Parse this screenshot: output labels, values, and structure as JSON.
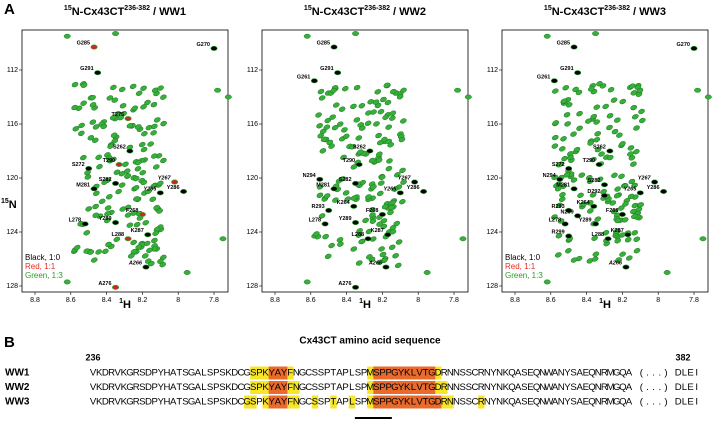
{
  "figure": {
    "panel_a_label": "A",
    "panel_b_label": "B",
    "y_axis_label": {
      "sup": "15",
      "main": "N"
    },
    "x_axis_label": {
      "sup": "1",
      "main": "H"
    },
    "x_ticks": [
      8.8,
      8.6,
      8.4,
      8.2,
      8.0,
      7.8
    ],
    "y_ticks": [
      112,
      116,
      120,
      124,
      128
    ],
    "legend": [
      {
        "text": "Black, 1:0",
        "color": "#000000"
      },
      {
        "text": "Red, 1:1",
        "color": "#e8281e"
      },
      {
        "text": "Green, 1:3",
        "color": "#2aa02a"
      }
    ],
    "spectra": [
      {
        "title": {
          "sup1": "15",
          "main": "N-Cx43CT",
          "sup2": "236-382",
          "post": " / WW1"
        },
        "legend": true,
        "peaks": [
          {
            "label": "G285",
            "h": 8.47,
            "n": 110.3
          },
          {
            "label": "G270",
            "h": 7.8,
            "n": 110.4
          },
          {
            "label": "G291",
            "h": 8.45,
            "n": 112.2
          },
          {
            "label": "T275",
            "h": 8.28,
            "n": 115.6
          },
          {
            "label": "S262",
            "h": 8.27,
            "n": 118.0
          },
          {
            "label": "S272",
            "h": 8.5,
            "n": 119.3
          },
          {
            "label": "T290",
            "h": 8.33,
            "n": 119.0
          },
          {
            "label": "S282",
            "h": 8.35,
            "n": 120.4
          },
          {
            "label": "M281",
            "h": 8.47,
            "n": 120.8
          },
          {
            "label": "Y267",
            "h": 8.02,
            "n": 120.3,
            "italic": true
          },
          {
            "label": "Y265",
            "h": 8.1,
            "n": 121.1,
            "italic": true
          },
          {
            "label": "Y286",
            "h": 7.97,
            "n": 121.0
          },
          {
            "label": "F268",
            "h": 8.2,
            "n": 122.7
          },
          {
            "label": "L278",
            "h": 8.52,
            "n": 123.4
          },
          {
            "label": "Y289",
            "h": 8.35,
            "n": 123.3
          },
          {
            "label": "L288",
            "h": 8.28,
            "n": 124.5
          },
          {
            "label": "K287",
            "h": 8.17,
            "n": 124.2
          },
          {
            "label": "A266",
            "h": 8.18,
            "n": 126.6,
            "italic": true
          },
          {
            "label": "A276",
            "h": 8.35,
            "n": 128.1
          }
        ]
      },
      {
        "title": {
          "sup1": "15",
          "main": "N-Cx43CT",
          "sup2": "236-382",
          "post": " / WW2"
        },
        "legend": false,
        "peaks": [
          {
            "label": "G285",
            "h": 8.47,
            "n": 110.3
          },
          {
            "label": "G291",
            "h": 8.45,
            "n": 112.2
          },
          {
            "label": "G261",
            "h": 8.58,
            "n": 112.8
          },
          {
            "label": "S262",
            "h": 8.27,
            "n": 118.0
          },
          {
            "label": "T290",
            "h": 8.33,
            "n": 119.0
          },
          {
            "label": "N294",
            "h": 8.55,
            "n": 120.1
          },
          {
            "label": "Y267",
            "h": 8.02,
            "n": 120.3,
            "italic": true
          },
          {
            "label": "S282",
            "h": 8.35,
            "n": 120.4
          },
          {
            "label": "M281",
            "h": 8.47,
            "n": 120.8
          },
          {
            "label": "Y265",
            "h": 8.1,
            "n": 121.1,
            "italic": true
          },
          {
            "label": "Y286",
            "h": 7.97,
            "n": 121.0
          },
          {
            "label": "R293",
            "h": 8.5,
            "n": 122.4
          },
          {
            "label": "K264",
            "h": 8.36,
            "n": 122.1
          },
          {
            "label": "Y289",
            "h": 8.35,
            "n": 123.3
          },
          {
            "label": "L278",
            "h": 8.52,
            "n": 123.4
          },
          {
            "label": "F268",
            "h": 8.2,
            "n": 122.7
          },
          {
            "label": "L288",
            "h": 8.28,
            "n": 124.5
          },
          {
            "label": "K287",
            "h": 8.17,
            "n": 124.2
          },
          {
            "label": "A266",
            "h": 8.18,
            "n": 126.6,
            "italic": true
          },
          {
            "label": "A276",
            "h": 8.35,
            "n": 128.1
          }
        ]
      },
      {
        "title": {
          "sup1": "15",
          "main": "N-Cx43CT",
          "sup2": "236-382",
          "post": " / WW3"
        },
        "legend": true,
        "peaks": [
          {
            "label": "G285",
            "h": 8.47,
            "n": 110.3
          },
          {
            "label": "G270",
            "h": 7.8,
            "n": 110.4
          },
          {
            "label": "G261",
            "h": 8.58,
            "n": 112.8
          },
          {
            "label": "G291",
            "h": 8.45,
            "n": 112.2
          },
          {
            "label": "S262",
            "h": 8.27,
            "n": 118.0
          },
          {
            "label": "S272",
            "h": 8.5,
            "n": 119.3
          },
          {
            "label": "T290",
            "h": 8.33,
            "n": 119.0
          },
          {
            "label": "N294",
            "h": 8.55,
            "n": 120.1
          },
          {
            "label": "S282",
            "h": 8.3,
            "n": 120.5
          },
          {
            "label": "Y267",
            "h": 8.02,
            "n": 120.3,
            "italic": true
          },
          {
            "label": "M281",
            "h": 8.47,
            "n": 120.8
          },
          {
            "label": "D292",
            "h": 8.3,
            "n": 121.3
          },
          {
            "label": "Y286",
            "h": 7.97,
            "n": 121.0
          },
          {
            "label": "Y265",
            "h": 8.1,
            "n": 121.1,
            "italic": true
          },
          {
            "label": "R293",
            "h": 8.5,
            "n": 122.4
          },
          {
            "label": "K264",
            "h": 8.36,
            "n": 122.1
          },
          {
            "label": "N269",
            "h": 8.45,
            "n": 122.8
          },
          {
            "label": "L278",
            "h": 8.52,
            "n": 123.4
          },
          {
            "label": "F268",
            "h": 8.2,
            "n": 122.7
          },
          {
            "label": "Y289",
            "h": 8.35,
            "n": 123.4
          },
          {
            "label": "R299",
            "h": 8.5,
            "n": 124.3
          },
          {
            "label": "L288",
            "h": 8.28,
            "n": 124.5
          },
          {
            "label": "K287",
            "h": 8.17,
            "n": 124.2
          },
          {
            "label": "A266",
            "h": 8.18,
            "n": 126.6,
            "italic": true
          }
        ]
      }
    ],
    "sequence_panel": {
      "title": "Cx43CT amino acid sequence",
      "start_number": "236",
      "end_number": "382",
      "colors": {
        "yellow": "#f7e628",
        "orange": "#ea6a2c"
      },
      "rows": [
        {
          "label": "WW1",
          "sequence": "VKDRVKGRSDPYHATSGALSPSKDCGSPKYAYFNGCSSPTAPLSPMSPPGYKLVTGDRNNSSCRNYNKQASEQNWANYSAEQNRMGQA (...) DLEI",
          "yellow": [
            262,
            263,
            264,
            268,
            281,
            292
          ],
          "orange": [
            265,
            266,
            267,
            282,
            283,
            284,
            285,
            286,
            287,
            288,
            289,
            290,
            291
          ]
        },
        {
          "label": "WW2",
          "sequence": "VKDRVKGRSDPYHATSGALSPSKDCGSPKYAYFNGCSSPTAPLSPMSPPGYKLVTGDRNNSSCRNYNKQASEQNWANYSAEQNRMGQA (...) DLEI",
          "yellow": [
            262,
            263,
            264,
            268,
            269,
            281,
            292,
            293
          ],
          "orange": [
            265,
            266,
            267,
            282,
            283,
            284,
            285,
            286,
            287,
            288,
            289,
            290,
            291
          ]
        },
        {
          "label": "WW3",
          "sequence": "VKDRVKGRSDPYHATSGALSPSKDCGSPKYAYFNGCSSPTAPLSPMSPPGYKLVTGDRNNSSCRNYNKQASEQNWANYSAEQNRMGQA (...) DLEI",
          "yellow": [
            261,
            262,
            264,
            268,
            269,
            272,
            275,
            278,
            281,
            293,
            294,
            299
          ],
          "orange": [
            265,
            266,
            267,
            282,
            283,
            284,
            285,
            286,
            287,
            288,
            289,
            290,
            291,
            292
          ]
        }
      ]
    }
  }
}
